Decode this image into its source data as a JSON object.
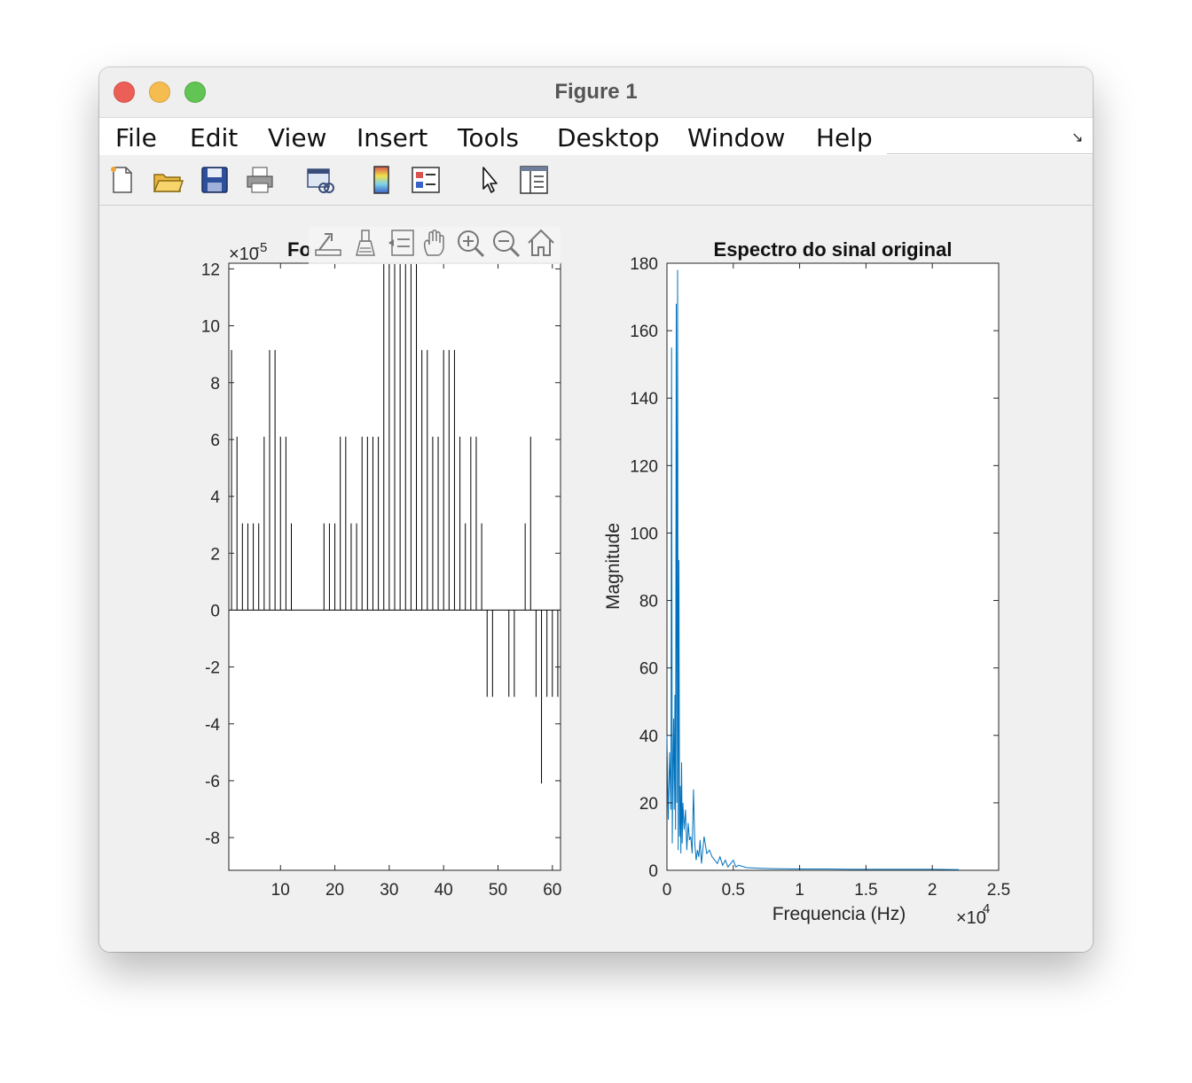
{
  "window": {
    "title": "Figure 1"
  },
  "menu": [
    "File",
    "Edit",
    "View",
    "Insert",
    "Tools",
    "Desktop",
    "Window",
    "Help"
  ],
  "toolbar_icons": [
    "new-figure-icon",
    "open-file-icon",
    "save-icon",
    "print-icon",
    "link-plot-icon",
    "colorbar-icon",
    "legend-icon",
    "edit-plot-icon",
    "property-inspector-icon"
  ],
  "axes_toolbar_icons": [
    "export-icon",
    "brush-icon",
    "datatips-icon",
    "pan-icon",
    "zoom-in-icon",
    "zoom-out-icon",
    "home-icon"
  ],
  "colors": {
    "spectrum_line": "#0072bd",
    "stem_line": "#000000",
    "figure_bg": "#f0f0f0"
  },
  "chart_data": [
    {
      "type": "bar",
      "title": "Fo",
      "xlabel": "",
      "ylabel": "",
      "exponent_label": "×10",
      "exponent_power": "-5",
      "xlim": [
        0.5,
        61.5
      ],
      "ylim": [
        -9.15,
        12.2
      ],
      "xticks": [
        10,
        20,
        30,
        40,
        50,
        60
      ],
      "yticks": [
        -8,
        -6,
        -4,
        -2,
        0,
        2,
        4,
        6,
        8,
        10,
        12
      ],
      "xtick_labels": [
        "10",
        "20",
        "30",
        "40",
        "50",
        "60"
      ],
      "ytick_labels": [
        "-8",
        "-6",
        "-4",
        "-2",
        "0",
        "2",
        "4",
        "6",
        "8",
        "10",
        "12"
      ],
      "scale": 1e-05,
      "x": [
        1,
        2,
        3,
        4,
        5,
        6,
        7,
        8,
        9,
        10,
        11,
        12,
        13,
        14,
        15,
        16,
        17,
        18,
        19,
        20,
        21,
        22,
        23,
        24,
        25,
        26,
        27,
        28,
        29,
        30,
        31,
        32,
        33,
        34,
        35,
        36,
        37,
        38,
        39,
        40,
        41,
        42,
        43,
        44,
        45,
        46,
        47,
        48,
        49,
        50,
        51,
        52,
        53,
        54,
        55,
        56,
        57,
        58,
        59,
        60,
        61
      ],
      "values": [
        9.15,
        6.1,
        3.05,
        3.05,
        3.05,
        3.05,
        6.1,
        9.15,
        9.15,
        6.1,
        6.1,
        3.05,
        0,
        0,
        0,
        0,
        0,
        3.05,
        3.05,
        3.05,
        6.1,
        6.1,
        3.05,
        3.05,
        6.1,
        6.1,
        6.1,
        6.1,
        12.2,
        12.2,
        12.2,
        12.2,
        12.2,
        12.2,
        12.2,
        9.15,
        9.15,
        6.1,
        6.1,
        9.15,
        9.15,
        9.15,
        6.1,
        3.05,
        6.1,
        6.1,
        3.05,
        -3.05,
        -3.05,
        0,
        0,
        -3.05,
        -3.05,
        0,
        3.05,
        6.1,
        -3.05,
        -6.1,
        -3.05,
        -3.05,
        -3.05
      ],
      "grid": false
    },
    {
      "type": "line",
      "title": "Espectro do sinal original",
      "xlabel": "Frequencia (Hz)",
      "ylabel": "Magnitude",
      "exponent_label": "×10",
      "exponent_power": "4",
      "xlim": [
        0,
        25000
      ],
      "ylim": [
        0,
        180
      ],
      "xticks": [
        0,
        5000,
        10000,
        15000,
        20000,
        25000
      ],
      "yticks": [
        0,
        20,
        40,
        60,
        80,
        100,
        120,
        140,
        160,
        180
      ],
      "xtick_labels": [
        "0",
        "0.5",
        "1",
        "1.5",
        "2",
        "2.5"
      ],
      "ytick_labels": [
        "0",
        "20",
        "40",
        "60",
        "80",
        "100",
        "120",
        "140",
        "160",
        "180"
      ],
      "series": [
        {
          "x": [
            0,
            100,
            200,
            300,
            350,
            400,
            450,
            500,
            550,
            600,
            650,
            700,
            750,
            800,
            850,
            900,
            950,
            1000,
            1050,
            1100,
            1150,
            1200,
            1300,
            1400,
            1500,
            1600,
            1700,
            1800,
            1900,
            2000,
            2100,
            2200,
            2300,
            2400,
            2500,
            2600,
            2800,
            3000,
            3200,
            3400,
            3600,
            3800,
            4000,
            4200,
            4400,
            4600,
            4800,
            5000,
            5200,
            5400,
            6000,
            7000,
            8000,
            10000,
            12000,
            14000,
            16000,
            18000,
            20000,
            22000
          ],
          "y": [
            40,
            15,
            35,
            18,
            155,
            8,
            30,
            45,
            18,
            52,
            12,
            168,
            20,
            178,
            6,
            92,
            10,
            25,
            5,
            32,
            8,
            20,
            12,
            18,
            6,
            14,
            9,
            10,
            5,
            24,
            8,
            3,
            6,
            4,
            9,
            2,
            10,
            5,
            6,
            4,
            3,
            2,
            4,
            1.5,
            3,
            1,
            2,
            3,
            1,
            1.5,
            0.8,
            0.6,
            0.5,
            0.4,
            0.4,
            0.3,
            0.3,
            0.3,
            0.3,
            0.2
          ]
        }
      ],
      "grid": false
    }
  ]
}
